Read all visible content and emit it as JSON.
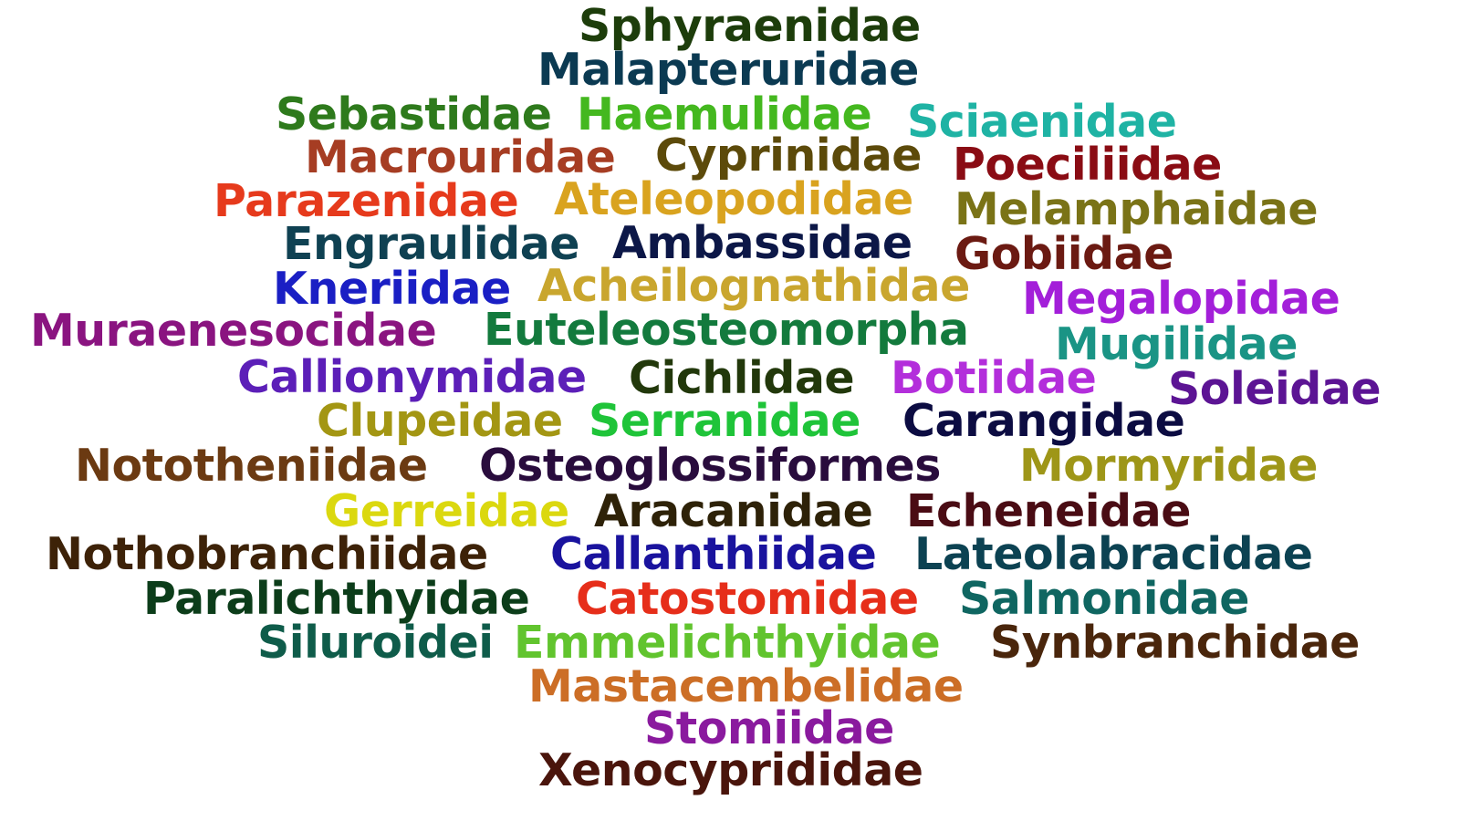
{
  "words": [
    {
      "text": "Sphyraenidae",
      "color": "#1d3d0b"
    },
    {
      "text": "Malapteruridae",
      "color": "#0b3a52"
    },
    {
      "text": "Sebastidae",
      "color": "#2e7a1c"
    },
    {
      "text": "Haemulidae",
      "color": "#44b81f"
    },
    {
      "text": "Sciaenidae",
      "color": "#1fb3a4"
    },
    {
      "text": "Macrouridae",
      "color": "#a63d23"
    },
    {
      "text": "Cyprinidae",
      "color": "#5c4a0a"
    },
    {
      "text": "Poeciliidae",
      "color": "#8a0c14"
    },
    {
      "text": "Parazenidae",
      "color": "#e63a1c"
    },
    {
      "text": "Ateleopodidae",
      "color": "#d9a31f"
    },
    {
      "text": "Melamphaidae",
      "color": "#7a7317"
    },
    {
      "text": "Engraulidae",
      "color": "#0f4152"
    },
    {
      "text": "Ambassidae",
      "color": "#0c1747"
    },
    {
      "text": "Gobiidae",
      "color": "#6b1a12"
    },
    {
      "text": "Kneriidae",
      "color": "#1a1fc4"
    },
    {
      "text": "Acheilognathidae",
      "color": "#c9a62e"
    },
    {
      "text": "Megalopidae",
      "color": "#a31fd9"
    },
    {
      "text": "Muraenesocidae",
      "color": "#8a1480"
    },
    {
      "text": "Euteleosteomorpha",
      "color": "#137a3d"
    },
    {
      "text": "Mugilidae",
      "color": "#1a9485"
    },
    {
      "text": "Callionymidae",
      "color": "#5c1fb8"
    },
    {
      "text": "Cichlidae",
      "color": "#22380b"
    },
    {
      "text": "Botiidae",
      "color": "#b32edb"
    },
    {
      "text": "Soleidae",
      "color": "#5c1494"
    },
    {
      "text": "Clupeidae",
      "color": "#a39613"
    },
    {
      "text": "Serranidae",
      "color": "#1fc439"
    },
    {
      "text": "Carangidae",
      "color": "#0c0c42"
    },
    {
      "text": "Nototheniidae",
      "color": "#6b3a12"
    },
    {
      "text": "Osteoglossiformes",
      "color": "#290c3d"
    },
    {
      "text": "Mormyridae",
      "color": "#9e9618"
    },
    {
      "text": "Gerreidae",
      "color": "#dbd80f"
    },
    {
      "text": "Aracanidae",
      "color": "#2e2208"
    },
    {
      "text": "Echeneidae",
      "color": "#4a0c14"
    },
    {
      "text": "Nothobranchiidae",
      "color": "#3d2208"
    },
    {
      "text": "Callanthiidae",
      "color": "#1a139e"
    },
    {
      "text": "Lateolabracidae",
      "color": "#0c4252"
    },
    {
      "text": "Paralichthyidae",
      "color": "#0c3d1a"
    },
    {
      "text": "Catostomidae",
      "color": "#e62e1a"
    },
    {
      "text": "Salmonidae",
      "color": "#0f6661"
    },
    {
      "text": "Siluroidei",
      "color": "#0f5c4a"
    },
    {
      "text": "Emmelichthyidae",
      "color": "#61c42e"
    },
    {
      "text": "Synbranchidae",
      "color": "#4a260c"
    },
    {
      "text": "Mastacembelidae",
      "color": "#cc6e26"
    },
    {
      "text": "Stomiidae",
      "color": "#8a1a9e"
    },
    {
      "text": "Xenocyprididae",
      "color": "#4a150c"
    }
  ]
}
